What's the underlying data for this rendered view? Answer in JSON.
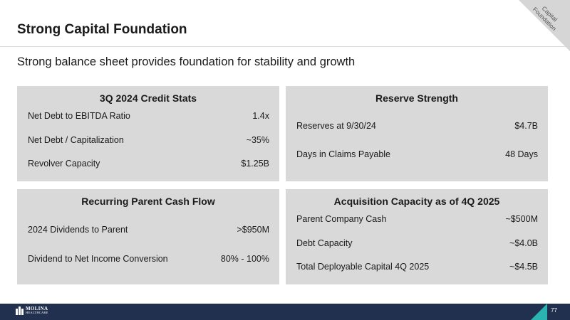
{
  "header": {
    "title": "Strong Capital Foundation",
    "corner_tag": "Capital Foundation"
  },
  "subtitle": "Strong balance sheet provides foundation for stability and growth",
  "cards": {
    "credit_stats": {
      "title": "3Q 2024 Credit Stats",
      "rows": [
        {
          "label": "Net Debt to EBITDA Ratio",
          "value": "1.4x"
        },
        {
          "label": "Net Debt / Capitalization",
          "value": "~35%"
        },
        {
          "label": "Revolver Capacity",
          "value": "$1.25B"
        }
      ]
    },
    "reserve_strength": {
      "title": "Reserve Strength",
      "rows": [
        {
          "label": "Reserves at 9/30/24",
          "value": "$4.7B"
        },
        {
          "label": "Days in Claims Payable",
          "value": "48 Days"
        }
      ]
    },
    "parent_cash_flow": {
      "title": "Recurring Parent Cash Flow",
      "rows": [
        {
          "label": "2024 Dividends to Parent",
          "value": ">$950M"
        },
        {
          "label": "Dividend to Net Income Conversion",
          "value": "80% - 100%"
        }
      ]
    },
    "acquisition_capacity": {
      "title": "Acquisition Capacity as of 4Q 2025",
      "rows": [
        {
          "label": "Parent Company Cash",
          "value": "~$500M"
        },
        {
          "label": "Debt Capacity",
          "value": "~$4.0B"
        },
        {
          "label": "Total Deployable Capital 4Q 2025",
          "value": "~$4.5B"
        }
      ]
    }
  },
  "footer": {
    "logo_line1": "MOLINA",
    "logo_line2": "HEALTHCARE",
    "page_number": "77",
    "navy": "#22304f",
    "teal": "#2ab3b1"
  }
}
